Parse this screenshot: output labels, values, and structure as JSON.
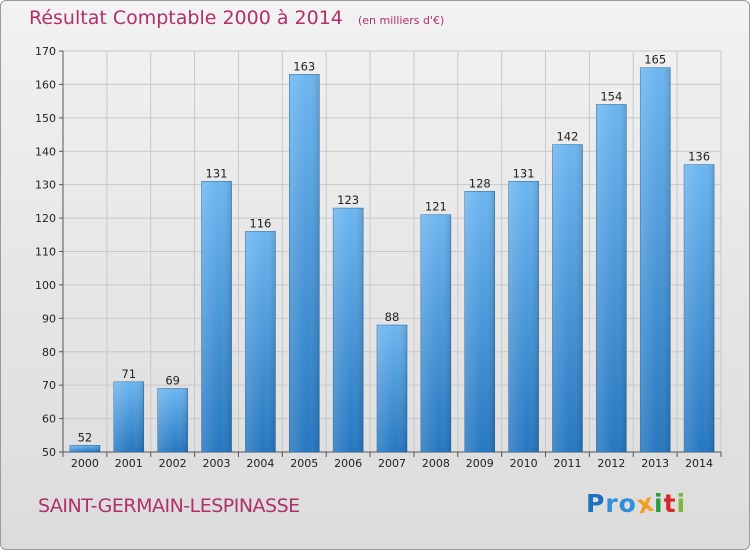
{
  "title": "Résultat Comptable 2000 à 2014",
  "subtitle": "(en milliers d'€)",
  "place_name": "SAINT-GERMAIN-LESPINASSE",
  "logo": {
    "text": "Proxiti",
    "letters": [
      "P",
      "r",
      "o",
      "x",
      "i",
      "t",
      "i"
    ],
    "colors": [
      "#1f6fc0",
      "#2f8fd8",
      "#2f8fd8",
      "#f0a020",
      "#2a9a3a",
      "#d62a2a",
      "#7bb83a"
    ]
  },
  "colors": {
    "bar_light": "#6db6f0",
    "bar_dark": "#2a7fc8",
    "title": "#b0306a"
  },
  "chart_data": {
    "type": "bar",
    "categories": [
      "2000",
      "2001",
      "2002",
      "2003",
      "2004",
      "2005",
      "2006",
      "2007",
      "2008",
      "2009",
      "2010",
      "2011",
      "2012",
      "2013",
      "2014"
    ],
    "values": [
      52,
      71,
      69,
      131,
      116,
      163,
      123,
      88,
      121,
      128,
      131,
      142,
      154,
      165,
      136
    ],
    "ylim": [
      50,
      170
    ],
    "yticks": [
      50,
      60,
      70,
      80,
      90,
      100,
      110,
      120,
      130,
      140,
      150,
      160,
      170
    ],
    "grid": true,
    "legend": "none"
  }
}
